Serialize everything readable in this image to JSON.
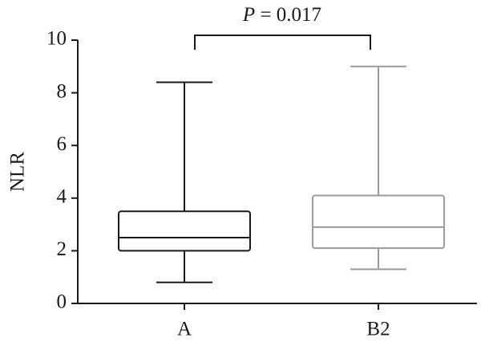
{
  "chart_data": {
    "type": "box",
    "annotation": {
      "symbol": "P",
      "text": "= 0.017"
    },
    "ylabel": "NLR",
    "categories": [
      "A",
      "B2"
    ],
    "boxes": [
      {
        "whisker_low": 0.8,
        "q1": 2.0,
        "median": 2.5,
        "q3": 3.5,
        "whisker_high": 8.4,
        "color": "#1a1a1a"
      },
      {
        "whisker_low": 1.3,
        "q1": 2.1,
        "median": 2.9,
        "q3": 4.1,
        "whisker_high": 9.0,
        "color": "#9a9a9a"
      }
    ],
    "ylim": [
      0,
      10
    ],
    "yticks": [
      0,
      2,
      4,
      6,
      8,
      10
    ],
    "grid": false
  }
}
